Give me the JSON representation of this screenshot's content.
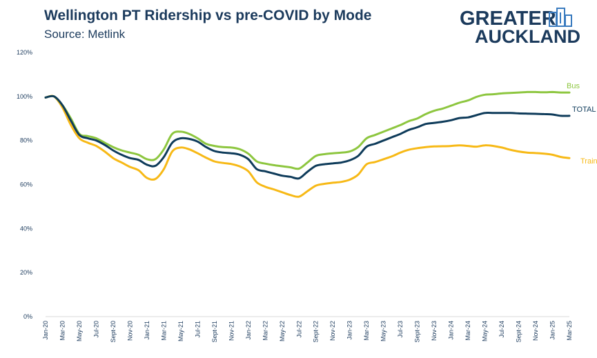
{
  "header": {
    "title": "Wellington PT Ridership vs pre-COVID by Mode",
    "subtitle": "Source: Metlink"
  },
  "logo": {
    "line1": "GREATER",
    "line2": "AUCKLAND",
    "icon": "city-buildings-icon"
  },
  "colors": {
    "bus": "#8dc63f",
    "total": "#0e3b5a",
    "train": "#f7b916",
    "text": "#1b3a5c",
    "grid": "#e6e6e6"
  },
  "chart_data": {
    "type": "line",
    "title": "Wellington PT Ridership vs pre-COVID by Mode",
    "subtitle": "Source: Metlink",
    "xlabel": "",
    "ylabel": "",
    "ylim": [
      0,
      120
    ],
    "y_ticks": [
      "0%",
      "20%",
      "40%",
      "60%",
      "80%",
      "100%",
      "120%"
    ],
    "y_tick_values": [
      0,
      20,
      40,
      60,
      80,
      100,
      120
    ],
    "x_tick_labels": [
      "Jan-20",
      "Mar-20",
      "May-20",
      "Jul-20",
      "Sept-20",
      "Nov-20",
      "Jan-21",
      "Mar-21",
      "May-21",
      "Jul-21",
      "Sept-21",
      "Nov-21",
      "Jan-22",
      "Mar-22",
      "May-22",
      "Jul-22",
      "Sept-22",
      "Nov-22",
      "Jan-23",
      "Mar-23",
      "May-23",
      "Jul-23",
      "Sept-23",
      "Nov-23",
      "Jan-24",
      "Mar-24",
      "May-24",
      "Jul-24",
      "Sept-24",
      "Nov-24",
      "Jan-25",
      "Mar-25"
    ],
    "grid": false,
    "legend": "none (series labelled at line ends)",
    "x": [
      "Jan-20",
      "Feb-20",
      "Mar-20",
      "Apr-20",
      "May-20",
      "Jun-20",
      "Jul-20",
      "Aug-20",
      "Sep-20",
      "Oct-20",
      "Nov-20",
      "Dec-20",
      "Jan-21",
      "Feb-21",
      "Mar-21",
      "Apr-21",
      "May-21",
      "Jun-21",
      "Jul-21",
      "Aug-21",
      "Sep-21",
      "Oct-21",
      "Nov-21",
      "Dec-21",
      "Jan-22",
      "Feb-22",
      "Mar-22",
      "Apr-22",
      "May-22",
      "Jun-22",
      "Jul-22",
      "Aug-22",
      "Sep-22",
      "Oct-22",
      "Nov-22",
      "Dec-22",
      "Jan-23",
      "Feb-23",
      "Mar-23",
      "Apr-23",
      "May-23",
      "Jun-23",
      "Jul-23",
      "Aug-23",
      "Sep-23",
      "Oct-23",
      "Nov-23",
      "Dec-23",
      "Jan-24",
      "Feb-24",
      "Mar-24",
      "Apr-24",
      "May-24",
      "Jun-24",
      "Jul-24",
      "Aug-24",
      "Sep-24",
      "Oct-24",
      "Nov-24",
      "Dec-24",
      "Jan-25",
      "Feb-25",
      "Mar-25"
    ],
    "series": [
      {
        "name": "Bus",
        "color": "#8dc63f",
        "values": [
          99.5,
          100,
          96,
          90,
          83,
          82,
          81,
          79,
          77,
          75.5,
          74.5,
          73.5,
          71.5,
          71.5,
          76,
          83,
          84,
          83,
          81,
          78.5,
          77.5,
          77,
          76.8,
          76,
          74,
          70.5,
          69.5,
          68.8,
          68.3,
          67.8,
          67.2,
          70,
          73,
          73.8,
          74.2,
          74.5,
          75,
          77,
          81,
          82.5,
          84,
          85.5,
          87,
          88.8,
          90,
          92,
          93.5,
          94.5,
          95.8,
          97.2,
          98.2,
          99.8,
          100.8,
          101,
          101.4,
          101.6,
          101.8,
          102,
          102,
          101.9,
          102,
          101.8,
          101.8
        ]
      },
      {
        "name": "TOTAL",
        "color": "#0e3b5a",
        "values": [
          99.5,
          100,
          96,
          89,
          82.5,
          81,
          80,
          78,
          75.5,
          73.5,
          72,
          71.2,
          69,
          68.5,
          72.5,
          79,
          81,
          80.7,
          79.5,
          77,
          75.2,
          74.5,
          74.2,
          73.5,
          71.5,
          67,
          66,
          65,
          64,
          63.5,
          62.8,
          65.8,
          68.5,
          69.2,
          69.6,
          70,
          71,
          73,
          77.2,
          78.5,
          80,
          81.5,
          83,
          84.8,
          86,
          87.5,
          88,
          88.5,
          89.2,
          90.2,
          90.5,
          91.5,
          92.5,
          92.5,
          92.5,
          92.5,
          92.3,
          92.2,
          92.1,
          92,
          91.8,
          91.2,
          91.2
        ]
      },
      {
        "name": "Train",
        "color": "#f7b916",
        "values": [
          99.5,
          100,
          95,
          87,
          81,
          79,
          77.5,
          75,
          72,
          70,
          68,
          66.5,
          63,
          62.5,
          67,
          75,
          76.8,
          76,
          74.2,
          72.2,
          70.5,
          69.8,
          69.3,
          68.2,
          66,
          61,
          59,
          57.8,
          56.5,
          55.2,
          54.5,
          57,
          59.5,
          60.3,
          60.8,
          61.2,
          62.2,
          64.5,
          69.2,
          70.2,
          71.5,
          72.8,
          74.5,
          75.8,
          76.5,
          77,
          77.3,
          77.4,
          77.5,
          77.8,
          77.5,
          77.2,
          77.8,
          77.5,
          76.8,
          75.8,
          75,
          74.5,
          74.3,
          74,
          73.5,
          72.5,
          72
        ]
      }
    ]
  }
}
